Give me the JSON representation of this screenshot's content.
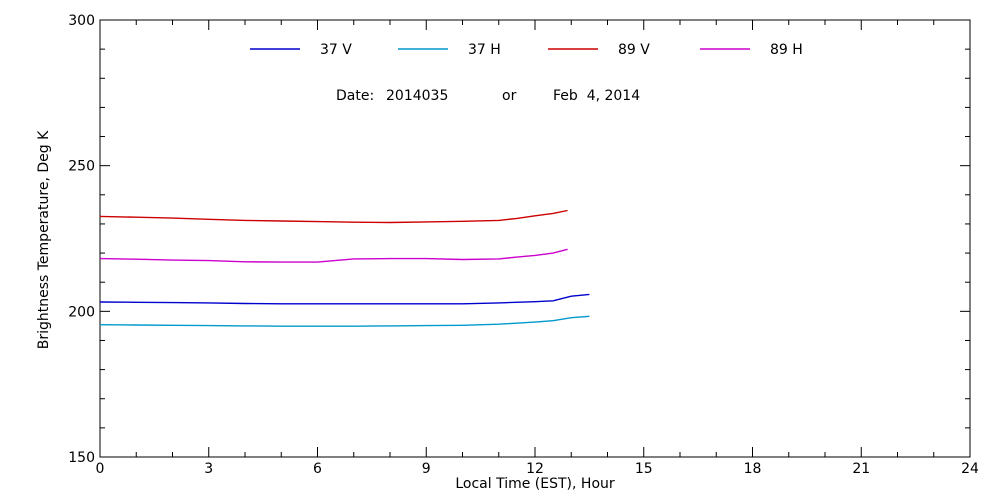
{
  "chart_data": {
    "type": "line",
    "title": "",
    "annotation": {
      "date_label": "Date:",
      "date_code": "2014035",
      "or_label": "or",
      "date_text": "Feb  4, 2014"
    },
    "xlabel": "Local Time (EST), Hour",
    "ylabel": "Brightness Temperature, Deg K",
    "xlim": [
      0,
      24
    ],
    "ylim": [
      150,
      300
    ],
    "x_ticks": [
      0,
      3,
      6,
      9,
      12,
      15,
      18,
      21,
      24
    ],
    "x_tick_labels": [
      "0",
      "3",
      "6",
      "9",
      "12",
      "15",
      "18",
      "21",
      "24"
    ],
    "y_ticks": [
      150,
      200,
      250,
      300
    ],
    "y_tick_labels": [
      "150",
      "200",
      "250",
      "300"
    ],
    "legend_position": "top",
    "grid": false,
    "series": [
      {
        "name": "37 V",
        "color": "#0000cc",
        "x": [
          0,
          1,
          2,
          3,
          4,
          5,
          6,
          7,
          8,
          9,
          10,
          11,
          12,
          12.5,
          13,
          13.5
        ],
        "y": [
          203.2,
          203.1,
          203.0,
          202.9,
          202.7,
          202.6,
          202.6,
          202.6,
          202.6,
          202.6,
          202.6,
          202.9,
          203.3,
          203.6,
          205.2,
          205.8
        ]
      },
      {
        "name": "37 H",
        "color": "#0099cc",
        "x": [
          0,
          1,
          2,
          3,
          4,
          5,
          6,
          7,
          8,
          9,
          10,
          11,
          12,
          12.5,
          13,
          13.5
        ],
        "y": [
          195.4,
          195.3,
          195.2,
          195.1,
          195.0,
          194.9,
          194.9,
          194.9,
          195.0,
          195.1,
          195.2,
          195.6,
          196.3,
          196.8,
          197.8,
          198.3
        ]
      },
      {
        "name": "89 V",
        "color": "#cc0000",
        "x": [
          0,
          1,
          2,
          3,
          4,
          5,
          6,
          7,
          8,
          9,
          10,
          11,
          11.5,
          12,
          12.5,
          12.9
        ],
        "y": [
          232.6,
          232.3,
          232.0,
          231.6,
          231.2,
          231.0,
          230.8,
          230.6,
          230.5,
          230.7,
          230.9,
          231.2,
          231.9,
          232.8,
          233.6,
          234.6
        ]
      },
      {
        "name": "89 H",
        "color": "#cc00cc",
        "x": [
          0,
          1,
          2,
          3,
          4,
          5,
          6,
          7,
          8,
          9,
          10,
          11,
          11.5,
          12,
          12.5,
          12.9
        ],
        "y": [
          218.1,
          217.9,
          217.6,
          217.4,
          217.0,
          216.9,
          216.9,
          218.0,
          218.1,
          218.1,
          217.8,
          218.0,
          218.6,
          219.2,
          220.0,
          221.3
        ]
      }
    ]
  }
}
